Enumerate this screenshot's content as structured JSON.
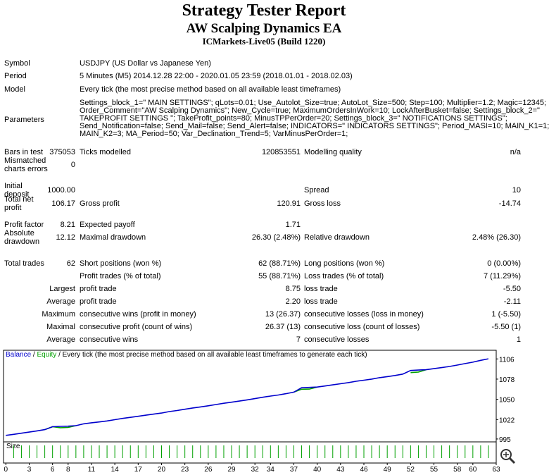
{
  "report": {
    "title": "Strategy Tester Report",
    "subtitle": "AW Scalping Dynamics EA",
    "server": "ICMarkets-Live05 (Build 1220)",
    "info": [
      {
        "label": "Symbol",
        "text": [
          "USDJPY (US Dollar vs Japanese Yen)"
        ]
      },
      {
        "label": "Period",
        "text": [
          "5 Minutes (M5) 2014.12.28 22:00 - 2020.01.05 23:59 (2018.01.01 - 2018.02.03)"
        ]
      },
      {
        "label": "Model",
        "text": [
          "Every tick (the most precise method based on all available least timeframes)"
        ]
      },
      {
        "label": "Parameters",
        "text": [
          "Settings_block_1=\" MAIN SETTINGS\"; qLots=0.01; Use_Autolot_Size=true; AutoLot_Size=500; Step=100; Multiplier=1.2; Magic=12345;",
          "Order_Comment=\"AW Scalping Dynamics\"; New_Cycle=true; MaximumOrdersInWork=10; LockAfterBusket=false; Settings_block_2=\"",
          "TAKEPROFIT SETTINGS \"; TakeProfit_points=80; MinusTPPerOrder=20; Settings_block_3=\" NOTIFICATIONS SETTINGS\";",
          "Send_Notification=false; Send_Mail=false; Send_Alert=false; INDICATORS=\" INDICATORS SETTINGS\"; Period_MASI=10; MAIN_K1=1;",
          "MAIN_K2=3; MA_Period=50; Var_Declination_Trend=5; VarMinusPerOrder=1;"
        ]
      }
    ],
    "rows": [
      {
        "label": "Bars in test",
        "value": "375053",
        "label2": "Ticks modelled",
        "value2": "120853551",
        "label3": "Modelling quality",
        "value3": "n/a"
      },
      {
        "label": "Mismatched charts errors",
        "value": "0"
      },
      {
        "label": "Initial deposit",
        "value": "1000.00",
        "label3": "Spread",
        "value3": "10"
      },
      {
        "label": "Total net profit",
        "value": "106.17",
        "label2": "Gross profit",
        "value2": "120.91",
        "label3": "Gross loss",
        "value3": "-14.74"
      },
      {
        "label": "Profit factor",
        "value": "8.21",
        "label2": "Expected payoff",
        "value2": "1.71"
      },
      {
        "label": "Absolute drawdown",
        "value": "12.12",
        "label2": "Maximal drawdown",
        "value2": "26.30 (2.48%)",
        "label3": "Relative drawdown",
        "value3": "2.48% (26.30)"
      },
      {
        "label": "Total trades",
        "value": "62",
        "label2": "Short positions (won %)",
        "value2": "62 (88.71%)",
        "label3": "Long positions (won %)",
        "value3": "0 (0.00%)"
      },
      {
        "label2": "Profit trades (% of total)",
        "value2": "55 (88.71%)",
        "label3": "Loss trades (% of total)",
        "value3": "7 (11.29%)"
      },
      {
        "lead": "Largest",
        "label2": "profit trade",
        "value2": "8.75",
        "label3": "loss trade",
        "value3": "-5.50"
      },
      {
        "lead": "Average",
        "label2": "profit trade",
        "value2": "2.20",
        "label3": "loss trade",
        "value3": "-2.11"
      },
      {
        "lead": "Maximum",
        "label2": "consecutive wins (profit in money)",
        "value2": "13 (26.37)",
        "label3": "consecutive losses (loss in money)",
        "value3": "1 (-5.50)"
      },
      {
        "lead": "Maximal",
        "label2": "consecutive profit (count of wins)",
        "value2": "26.37 (13)",
        "label3": "consecutive loss (count of losses)",
        "value3": "-5.50 (1)"
      },
      {
        "lead": "Average",
        "label2": "consecutive wins",
        "value2": "7",
        "label3": "consecutive losses",
        "value3": "1"
      }
    ]
  },
  "chart_data": {
    "type": "line",
    "separator": "/",
    "caption": "Every tick (the most precise method based on all available least timeframes to generate each tick)",
    "x": [
      0,
      1,
      2,
      3,
      4,
      5,
      6,
      7,
      8,
      9,
      10,
      11,
      12,
      13,
      14,
      15,
      16,
      17,
      18,
      19,
      20,
      21,
      22,
      23,
      24,
      25,
      26,
      27,
      28,
      29,
      30,
      31,
      32,
      33,
      34,
      35,
      36,
      37,
      38,
      39,
      40,
      41,
      42,
      43,
      44,
      45,
      46,
      47,
      48,
      49,
      50,
      51,
      52,
      53,
      54,
      55,
      56,
      57,
      58,
      59,
      60,
      61,
      62
    ],
    "series": [
      {
        "name": "Balance",
        "color": "#0000cc",
        "values": [
          1000.0,
          1001.5,
          1003.0,
          1004.6,
          1006.2,
          1008.0,
          1012.0,
          1012.5,
          1012.8,
          1013.5,
          1016.0,
          1017.5,
          1018.6,
          1020.0,
          1021.8,
          1023.5,
          1025.0,
          1026.5,
          1028.0,
          1029.5,
          1031.0,
          1033.0,
          1034.5,
          1036.2,
          1038.0,
          1039.5,
          1041.0,
          1042.8,
          1044.5,
          1046.0,
          1047.6,
          1049.2,
          1051.0,
          1052.8,
          1054.5,
          1056.0,
          1057.8,
          1060.0,
          1066.0,
          1066.5,
          1067.0,
          1068.5,
          1070.0,
          1071.6,
          1073.2,
          1075.0,
          1076.5,
          1078.0,
          1080.0,
          1081.5,
          1083.0,
          1085.0,
          1090.0,
          1090.5,
          1091.0,
          1092.5,
          1094.0,
          1095.5,
          1097.5,
          1099.5,
          1101.5,
          1104.0,
          1106.2
        ]
      },
      {
        "name": "Equity",
        "color": "#00a000",
        "values": [
          null,
          null,
          null,
          null,
          null,
          1008.0,
          1012.0,
          1010.6,
          1011.0,
          1013.5,
          null,
          null,
          null,
          null,
          null,
          null,
          null,
          null,
          null,
          null,
          null,
          null,
          null,
          null,
          null,
          null,
          null,
          null,
          null,
          null,
          null,
          null,
          null,
          null,
          null,
          null,
          null,
          1060.0,
          1064.0,
          1064.2,
          1067.0,
          null,
          null,
          null,
          null,
          null,
          null,
          null,
          null,
          null,
          null,
          null,
          1087.0,
          1087.8,
          1091.0,
          null,
          null,
          null,
          null,
          null,
          null,
          null,
          null
        ]
      }
    ],
    "size": {
      "name": "Size",
      "values": [
        null,
        0.01,
        0.01,
        0.01,
        0.01,
        0.01,
        0.01,
        0.01,
        0.01,
        0.01,
        0.01,
        0.01,
        0.01,
        0.01,
        0.01,
        0.01,
        0.01,
        0.01,
        0.01,
        0.01,
        0.01,
        0.01,
        0.01,
        0.01,
        0.01,
        0.01,
        0.01,
        0.01,
        0.01,
        0.01,
        0.01,
        0.01,
        0.01,
        0.01,
        0.01,
        0.01,
        0.01,
        0.01,
        0.01,
        0.01,
        0.01,
        0.01,
        0.01,
        0.01,
        0.01,
        0.01,
        0.01,
        0.01,
        0.01,
        0.01,
        0.01,
        0.01,
        0.01,
        0.01,
        0.01,
        0.01,
        0.01,
        0.01,
        0.01,
        0.01,
        0.01,
        0.01,
        0.01
      ]
    },
    "xlim": [
      -0.3,
      63
    ],
    "xticks": [
      0,
      3,
      6,
      8,
      11,
      14,
      17,
      20,
      23,
      26,
      29,
      32,
      34,
      37,
      40,
      43,
      46,
      49,
      52,
      55,
      58,
      60,
      63
    ],
    "ylim": [
      991,
      1118
    ],
    "yticks": [
      995,
      1022,
      1050,
      1078,
      1106
    ],
    "grid": false
  }
}
